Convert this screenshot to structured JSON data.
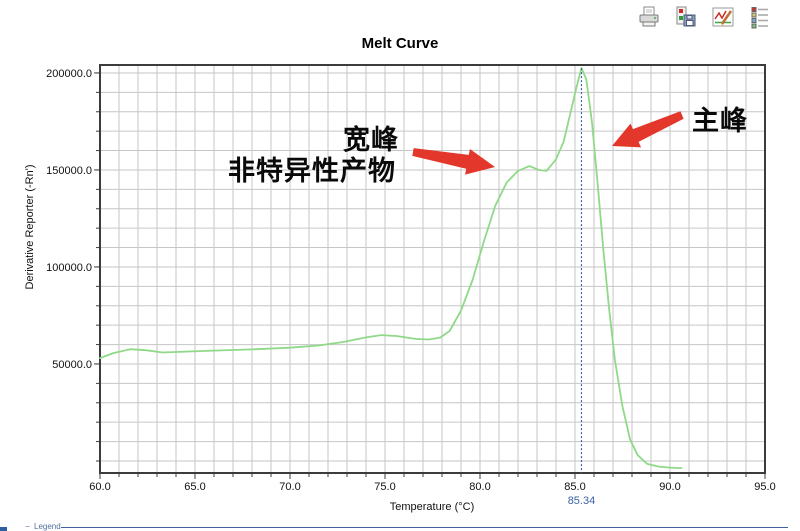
{
  "toolbar": {
    "icons": [
      {
        "name": "print-icon"
      },
      {
        "name": "export-data-icon"
      },
      {
        "name": "edit-plot-icon"
      },
      {
        "name": "legend-list-icon"
      }
    ]
  },
  "chart_data": {
    "type": "line",
    "title": "Melt Curve",
    "xlabel": "Temperature (°C)",
    "ylabel": "Derivative Reporter (-Rn')",
    "xlim": [
      60.0,
      95.0
    ],
    "ylim": [
      -6200,
      204100
    ],
    "grid": true,
    "x_minor_step": 1,
    "y_minor_step": 10000,
    "x_major_ticks": [
      60,
      65,
      70,
      75,
      80,
      85,
      90,
      95
    ],
    "x_tick_labels": [
      "60.0",
      "65.0",
      "70.0",
      "75.0",
      "80.0",
      "85.0",
      "90.0",
      "95.0"
    ],
    "y_major_ticks": [
      50000,
      100000,
      150000,
      200000
    ],
    "y_tick_labels": [
      "50000.0",
      "100000.0",
      "150000.0",
      "200000.0"
    ],
    "series": [
      {
        "name": "melt-curve",
        "color": "#8fd988",
        "points": [
          [
            60.0,
            53000
          ],
          [
            60.7,
            55600
          ],
          [
            61.6,
            57600
          ],
          [
            62.4,
            57100
          ],
          [
            63.3,
            55900
          ],
          [
            64.5,
            56400
          ],
          [
            66.0,
            56900
          ],
          [
            68.0,
            57500
          ],
          [
            70.0,
            58400
          ],
          [
            71.5,
            59500
          ],
          [
            72.8,
            61300
          ],
          [
            74.0,
            63700
          ],
          [
            74.8,
            64900
          ],
          [
            75.6,
            64400
          ],
          [
            76.6,
            62900
          ],
          [
            77.3,
            62600
          ],
          [
            77.9,
            63600
          ],
          [
            78.4,
            67000
          ],
          [
            79.0,
            77500
          ],
          [
            79.6,
            93000
          ],
          [
            80.2,
            113000
          ],
          [
            80.8,
            131500
          ],
          [
            81.4,
            143500
          ],
          [
            82.0,
            149500
          ],
          [
            82.6,
            152000
          ],
          [
            83.1,
            150000
          ],
          [
            83.5,
            149500
          ],
          [
            84.0,
            155500
          ],
          [
            84.4,
            164500
          ],
          [
            84.8,
            181000
          ],
          [
            85.1,
            193500
          ],
          [
            85.34,
            202500
          ],
          [
            85.6,
            196500
          ],
          [
            85.9,
            174000
          ],
          [
            86.2,
            142000
          ],
          [
            86.5,
            108000
          ],
          [
            86.8,
            78000
          ],
          [
            87.1,
            52000
          ],
          [
            87.5,
            28000
          ],
          [
            87.9,
            11000
          ],
          [
            88.3,
            3000
          ],
          [
            88.8,
            -1500
          ],
          [
            89.4,
            -2900
          ],
          [
            90.0,
            -3400
          ],
          [
            90.6,
            -3700
          ]
        ]
      }
    ],
    "peak_marker": {
      "x": 85.34,
      "label": "85.34",
      "color": "#3a62a8"
    },
    "annotations": [
      {
        "lines": [
          "宽峰",
          "非特异性产物"
        ],
        "target": "shoulder-peak",
        "arrow_color": "#e2372a"
      },
      {
        "lines": [
          "主峰"
        ],
        "target": "main-peak",
        "arrow_color": "#e2372a"
      }
    ]
  },
  "legend_bar": {
    "toggle": "−",
    "label": "Legend"
  },
  "colors": {
    "curve": "#8fd988",
    "marker_line": "#3a62a8",
    "annotation_arrow": "#e2372a",
    "grid": "#c6c6c6",
    "axis_border": "#3c3c3c"
  }
}
